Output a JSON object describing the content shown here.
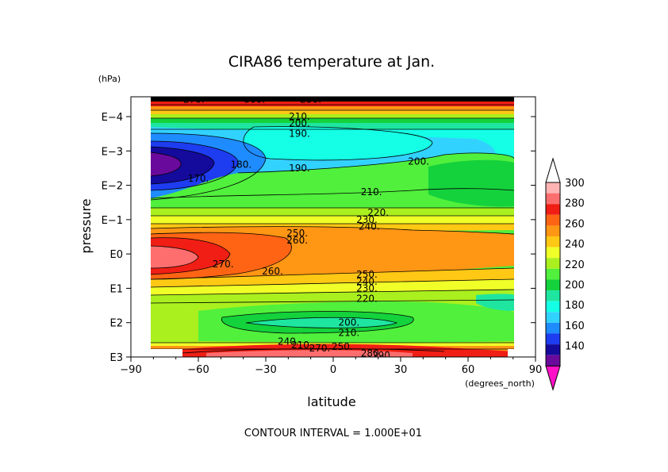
{
  "chart_data": {
    "type": "heatmap",
    "subtype": "filled-contour",
    "title": "CIRA86 temperature at Jan.",
    "xlabel": "latitude",
    "x_units": "(degrees_north)",
    "ylabel": "pressure",
    "y_units": "(hPa)",
    "xlim": [
      -90,
      90
    ],
    "x_ticks": [
      -90,
      -60,
      -30,
      0,
      30,
      60,
      90
    ],
    "x_tick_labels": [
      "−90",
      "−60",
      "−30",
      "0",
      "30",
      "60",
      "90"
    ],
    "y_scale": "log",
    "y_ticks": [
      "E3",
      "E2",
      "E1",
      "E0",
      "E−1",
      "E−2",
      "E−3",
      "E−4"
    ],
    "footer": "CONTOUR INTERVAL = 1.000E+01",
    "colorbar": {
      "levels": [
        140,
        160,
        180,
        200,
        220,
        240,
        260,
        280,
        300
      ],
      "colors": [
        "#ff10c8",
        "#6a0a9c",
        "#140a9c",
        "#1e3cf0",
        "#1e8cff",
        "#32d2ff",
        "#14ffe6",
        "#1ee6a0",
        "#14d23c",
        "#50f03c",
        "#aaf01e",
        "#f0ff28",
        "#ffc814",
        "#ff9614",
        "#ff6414",
        "#f01e14",
        "#ff6e6e",
        "#ffb4b4",
        "#ffffff"
      ]
    },
    "contour_labels": [
      {
        "text": "190.",
        "lat": -15,
        "p": "E-3.5"
      },
      {
        "text": "200.",
        "lat": -15,
        "p": "E-3.8"
      },
      {
        "text": "210.",
        "lat": -15,
        "p": "E-4.0"
      },
      {
        "text": "190.",
        "lat": -15,
        "p": "E-2.5"
      },
      {
        "text": "180.",
        "lat": -41,
        "p": "E-2.6"
      },
      {
        "text": "170.",
        "lat": -60,
        "p": "E-2.2"
      },
      {
        "text": "200.",
        "lat": 38,
        "p": "E-2.7"
      },
      {
        "text": "210.",
        "lat": 17,
        "p": "E-1.8"
      },
      {
        "text": "220.",
        "lat": 20,
        "p": "E-1.2"
      },
      {
        "text": "230.",
        "lat": 15,
        "p": "E-1.0"
      },
      {
        "text": "240.",
        "lat": 16,
        "p": "E-0.8"
      },
      {
        "text": "250.",
        "lat": -16,
        "p": "E-0.6"
      },
      {
        "text": "260.",
        "lat": -16,
        "p": "E-0.4"
      },
      {
        "text": "270.",
        "lat": -49,
        "p": "E0.3"
      },
      {
        "text": "260.",
        "lat": -27,
        "p": "E0.5"
      },
      {
        "text": "250.",
        "lat": 15,
        "p": "E0.6"
      },
      {
        "text": "240.",
        "lat": 15,
        "p": "E0.8"
      },
      {
        "text": "230.",
        "lat": 15,
        "p": "E1.0"
      },
      {
        "text": "220.",
        "lat": 15,
        "p": "E1.3"
      },
      {
        "text": "200.",
        "lat": 7,
        "p": "E2.0"
      },
      {
        "text": "210.",
        "lat": 7,
        "p": "E2.3"
      },
      {
        "text": "240.",
        "lat": -20,
        "p": "E2.55"
      },
      {
        "text": "210.",
        "lat": -14,
        "p": "E2.65"
      },
      {
        "text": "270.",
        "lat": -6,
        "p": "E2.75"
      },
      {
        "text": "250.",
        "lat": 4,
        "p": "E2.7"
      },
      {
        "text": "280.",
        "lat": 17,
        "p": "E2.9"
      },
      {
        "text": "290.",
        "lat": 22,
        "p": "E2.95"
      },
      {
        "text": "270.",
        "lat": -62,
        "p": "E-4.5"
      },
      {
        "text": "300.",
        "lat": -35,
        "p": "E-4.5"
      },
      {
        "text": "250.",
        "lat": -10,
        "p": "E-4.5"
      }
    ]
  }
}
